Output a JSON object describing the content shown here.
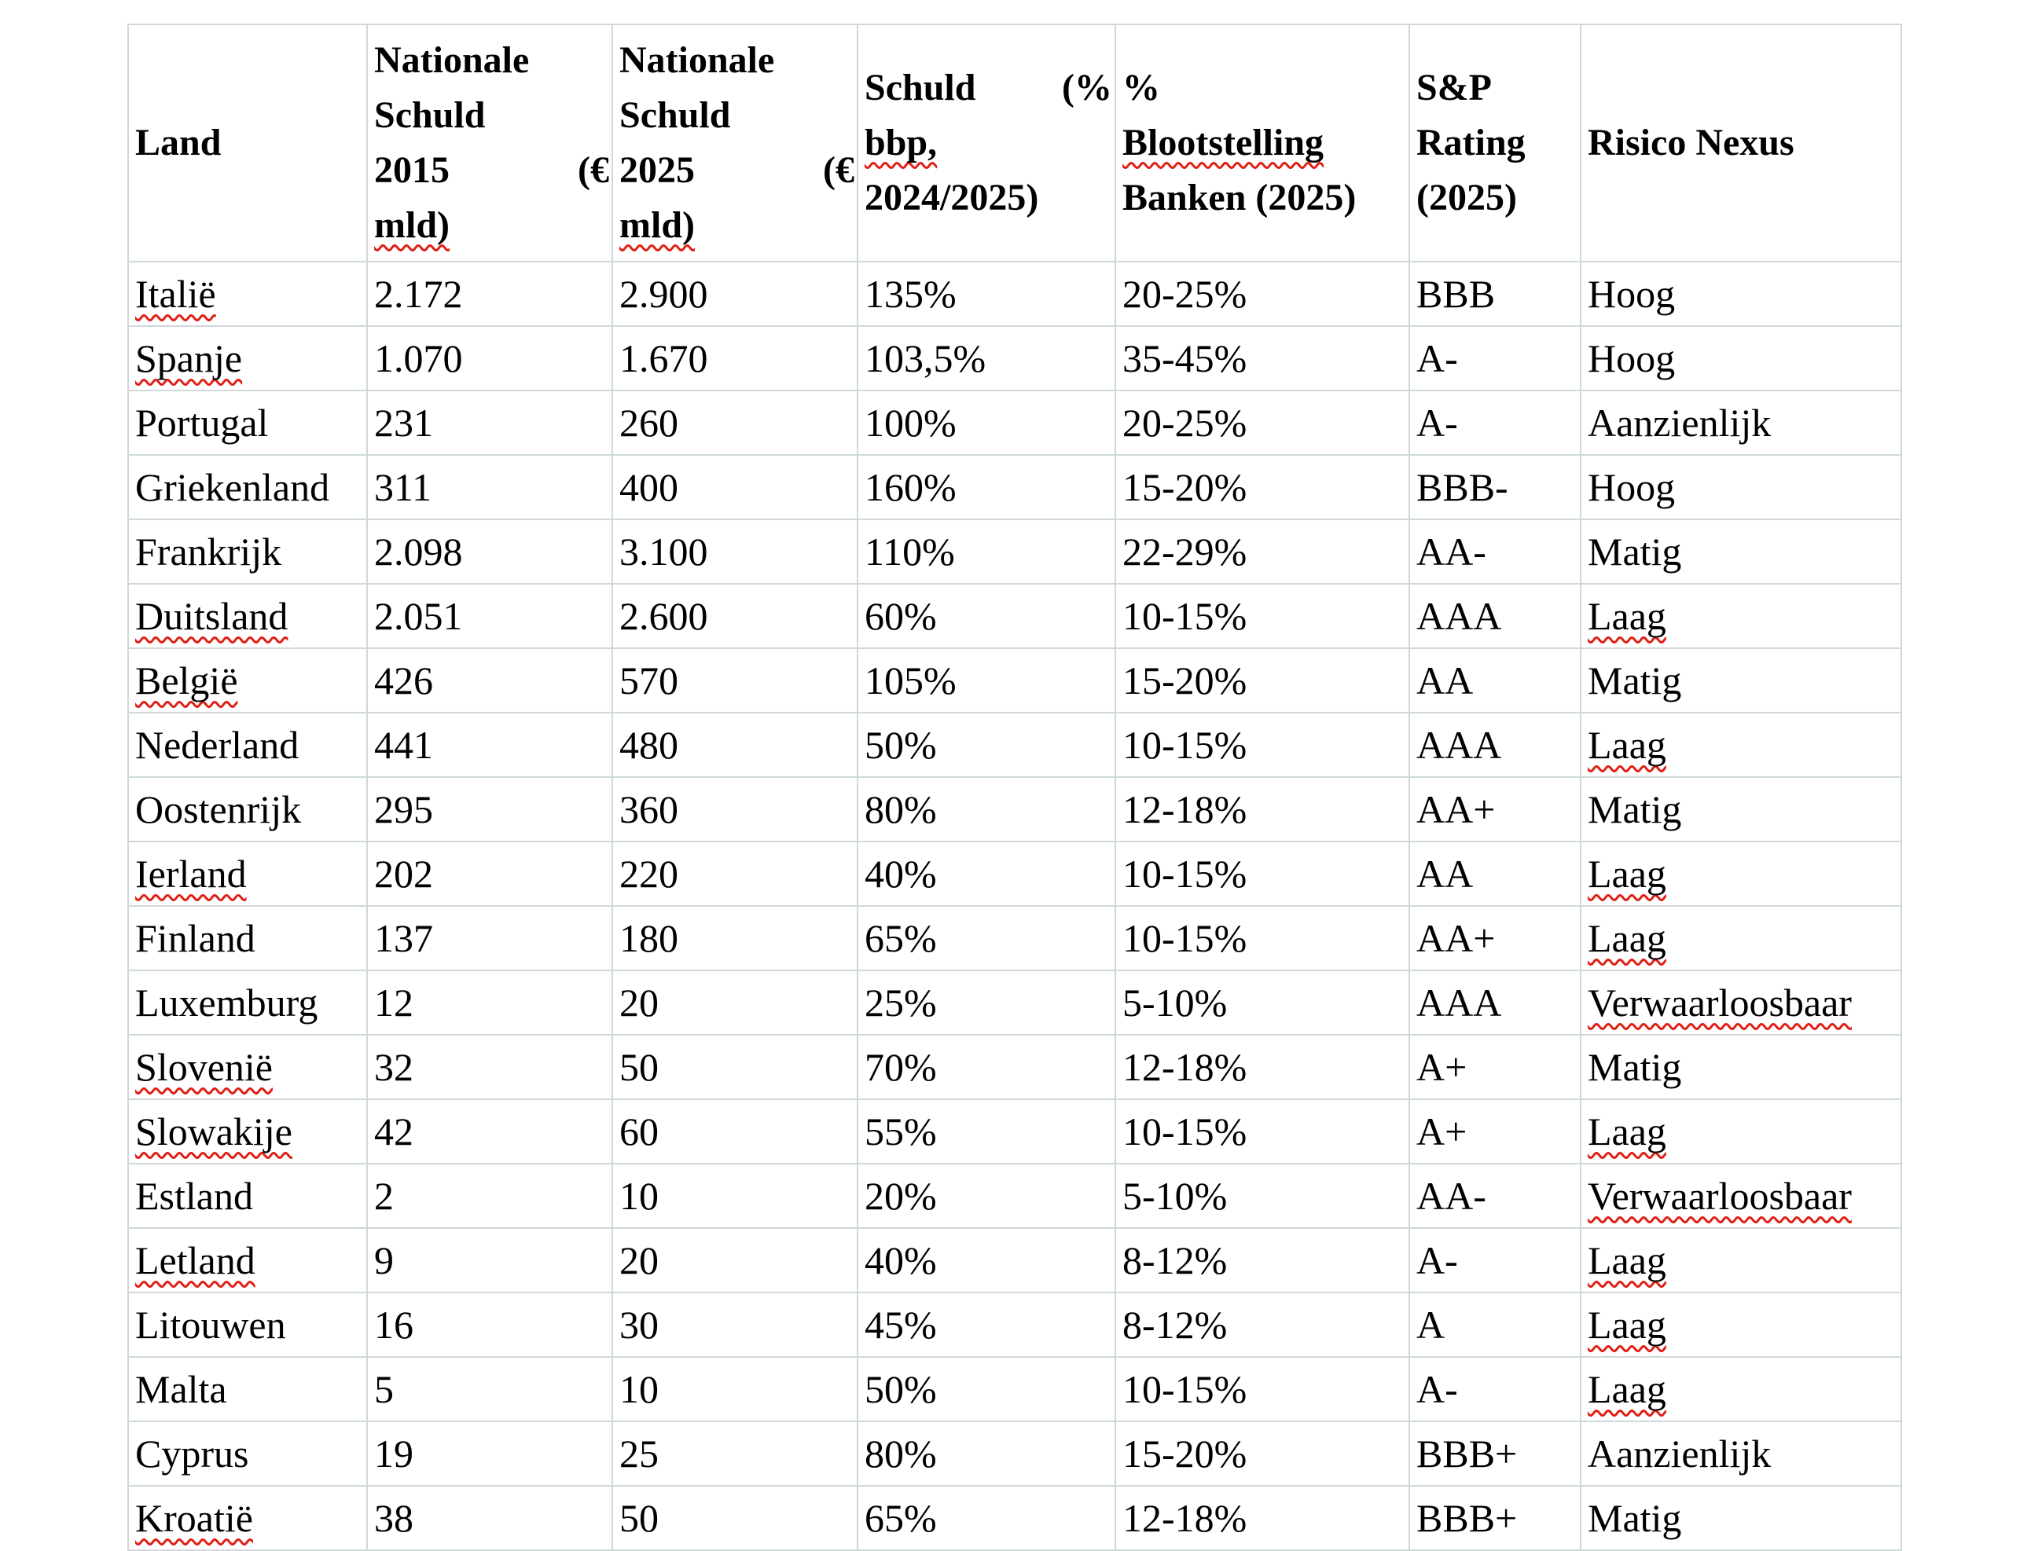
{
  "colors": {
    "grid": "#cfd8da",
    "spellcheck_red": "#e11e14",
    "text": "#000000",
    "background": "#ffffff"
  },
  "header": {
    "col1": {
      "line1": "Land"
    },
    "col2": {
      "line1": "Nationale",
      "line2": "Schuld",
      "line3a": "2015",
      "line3b": "(€",
      "line4": "mld)"
    },
    "col3": {
      "line1": "Nationale",
      "line2": "Schuld",
      "line3a": "2025",
      "line3b": "(€",
      "line4": "mld)"
    },
    "col4": {
      "line1a": "Schuld",
      "line1b": "(%",
      "line2": "bbp,",
      "line3": "2024/2025)"
    },
    "col5": {
      "line1": "%",
      "line2": "Blootstelling",
      "line3": "Banken (2025)"
    },
    "col6": {
      "line1": "S&P",
      "line2": "Rating",
      "line3": "(2025)"
    },
    "col7": {
      "line1": "Risico Nexus"
    }
  },
  "table": {
    "rows": [
      {
        "land": "Italië",
        "land_sq": true,
        "d2015": "2.172",
        "d2025": "2.900",
        "bbp": "135%",
        "expo": "20-25%",
        "rating": "BBB",
        "risk": "Hoog",
        "risk_sq": false
      },
      {
        "land": "Spanje",
        "land_sq": true,
        "d2015": "1.070",
        "d2025": "1.670",
        "bbp": "103,5%",
        "expo": "35-45%",
        "rating": "A-",
        "risk": "Hoog",
        "risk_sq": false
      },
      {
        "land": "Portugal",
        "land_sq": false,
        "d2015": "231",
        "d2025": "260",
        "bbp": "100%",
        "expo": "20-25%",
        "rating": "A-",
        "risk": "Aanzienlijk",
        "risk_sq": false
      },
      {
        "land": "Griekenland",
        "land_sq": false,
        "d2015": "311",
        "d2025": "400",
        "bbp": "160%",
        "expo": "15-20%",
        "rating": "BBB-",
        "risk": "Hoog",
        "risk_sq": false
      },
      {
        "land": "Frankrijk",
        "land_sq": false,
        "d2015": "2.098",
        "d2025": "3.100",
        "bbp": "110%",
        "expo": "22-29%",
        "rating": "AA-",
        "risk": "Matig",
        "risk_sq": false
      },
      {
        "land": "Duitsland",
        "land_sq": true,
        "d2015": "2.051",
        "d2025": "2.600",
        "bbp": "60%",
        "expo": "10-15%",
        "rating": "AAA",
        "risk": "Laag",
        "risk_sq": true
      },
      {
        "land": "België",
        "land_sq": true,
        "d2015": "426",
        "d2025": "570",
        "bbp": "105%",
        "expo": "15-20%",
        "rating": "AA",
        "risk": "Matig",
        "risk_sq": false
      },
      {
        "land": "Nederland",
        "land_sq": false,
        "d2015": "441",
        "d2025": "480",
        "bbp": "50%",
        "expo": "10-15%",
        "rating": "AAA",
        "risk": "Laag",
        "risk_sq": true
      },
      {
        "land": "Oostenrijk",
        "land_sq": false,
        "d2015": "295",
        "d2025": "360",
        "bbp": "80%",
        "expo": "12-18%",
        "rating": "AA+",
        "risk": "Matig",
        "risk_sq": false
      },
      {
        "land": "Ierland",
        "land_sq": true,
        "d2015": "202",
        "d2025": "220",
        "bbp": "40%",
        "expo": "10-15%",
        "rating": "AA",
        "risk": "Laag",
        "risk_sq": true
      },
      {
        "land": "Finland",
        "land_sq": false,
        "d2015": "137",
        "d2025": "180",
        "bbp": "65%",
        "expo": "10-15%",
        "rating": "AA+",
        "risk": "Laag",
        "risk_sq": true
      },
      {
        "land": "Luxemburg",
        "land_sq": false,
        "d2015": "12",
        "d2025": "20",
        "bbp": "25%",
        "expo": "5-10%",
        "rating": "AAA",
        "risk": "Verwaarloosbaar",
        "risk_sq": true
      },
      {
        "land": "Slovenië",
        "land_sq": true,
        "d2015": "32",
        "d2025": "50",
        "bbp": "70%",
        "expo": "12-18%",
        "rating": "A+",
        "risk": "Matig",
        "risk_sq": false
      },
      {
        "land": "Slowakije",
        "land_sq": true,
        "d2015": "42",
        "d2025": "60",
        "bbp": "55%",
        "expo": "10-15%",
        "rating": "A+",
        "risk": "Laag",
        "risk_sq": true
      },
      {
        "land": "Estland",
        "land_sq": false,
        "d2015": "2",
        "d2025": "10",
        "bbp": "20%",
        "expo": "5-10%",
        "rating": "AA-",
        "risk": "Verwaarloosbaar",
        "risk_sq": true
      },
      {
        "land": "Letland",
        "land_sq": true,
        "d2015": "9",
        "d2025": "20",
        "bbp": "40%",
        "expo": "8-12%",
        "rating": "A-",
        "risk": "Laag",
        "risk_sq": true
      },
      {
        "land": "Litouwen",
        "land_sq": false,
        "d2015": "16",
        "d2025": "30",
        "bbp": "45%",
        "expo": "8-12%",
        "rating": "A",
        "risk": "Laag",
        "risk_sq": true
      },
      {
        "land": "Malta",
        "land_sq": false,
        "d2015": "5",
        "d2025": "10",
        "bbp": "50%",
        "expo": "10-15%",
        "rating": "A-",
        "risk": "Laag",
        "risk_sq": true
      },
      {
        "land": "Cyprus",
        "land_sq": false,
        "d2015": "19",
        "d2025": "25",
        "bbp": "80%",
        "expo": "15-20%",
        "rating": "BBB+",
        "risk": "Aanzienlijk",
        "risk_sq": false
      },
      {
        "land": "Kroatië",
        "land_sq": true,
        "d2015": "38",
        "d2025": "50",
        "bbp": "65%",
        "expo": "12-18%",
        "rating": "BBB+",
        "risk": "Matig",
        "risk_sq": false
      }
    ]
  }
}
